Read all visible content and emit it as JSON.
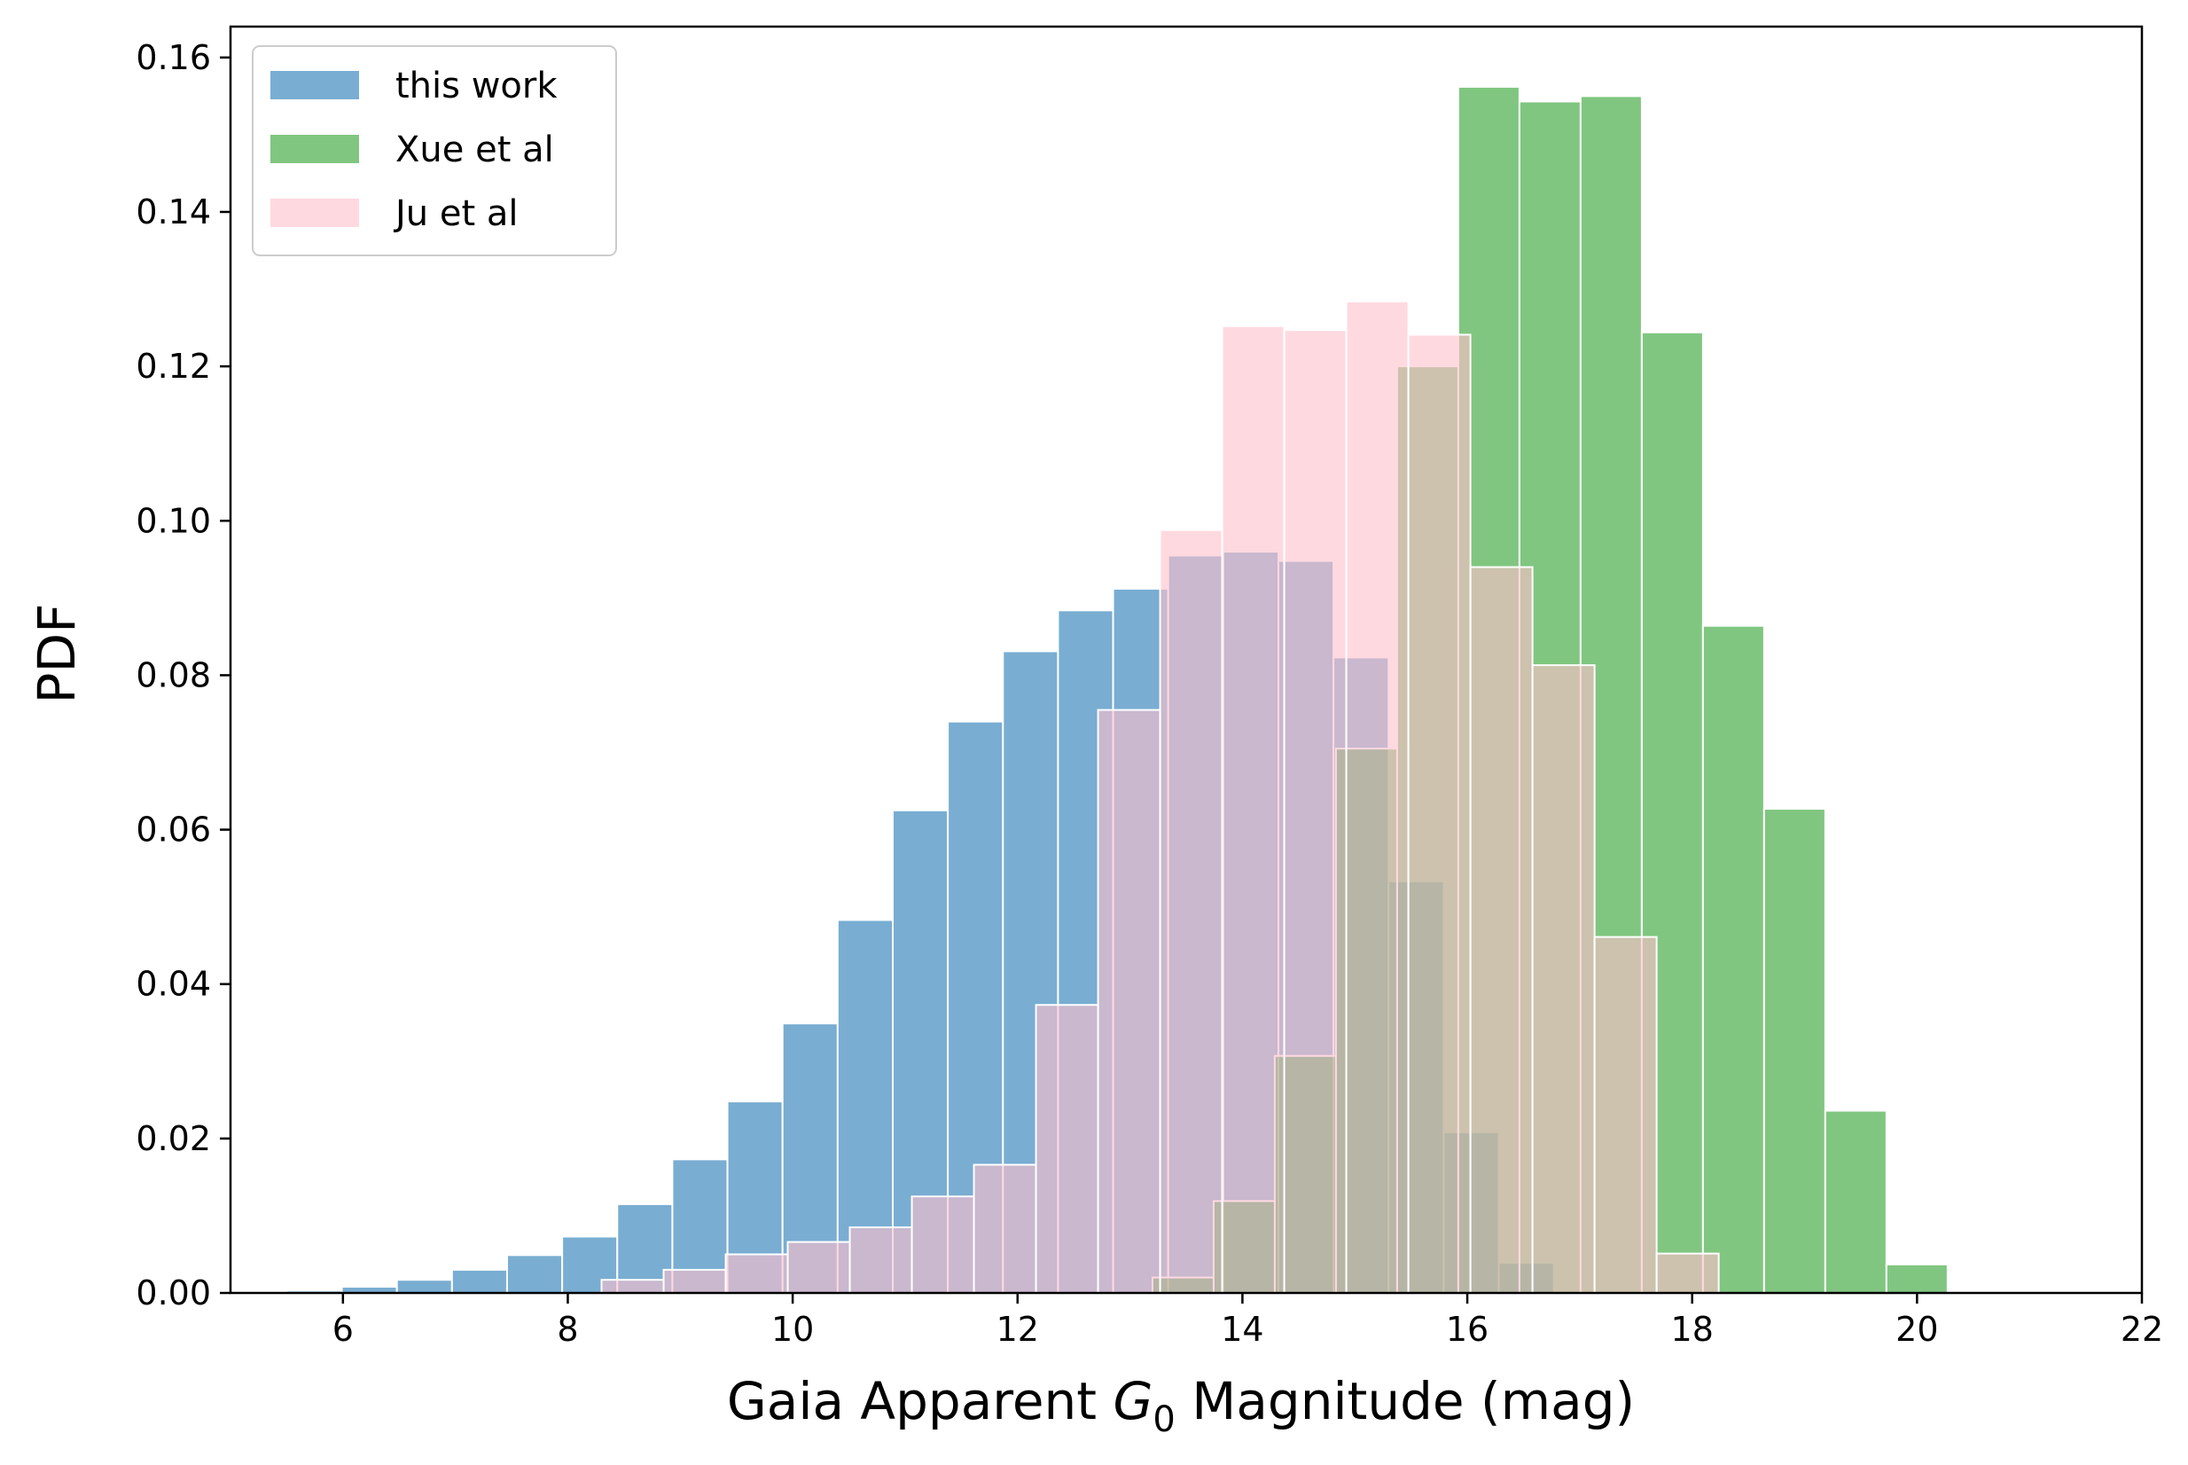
{
  "chart_data": {
    "type": "histogram",
    "xlabel": "Gaia Apparent G0 Magnitude (mag)",
    "xlabel_parts": {
      "prefix": "Gaia Apparent ",
      "var": "G",
      "sub": "0",
      "suffix": " Magnitude (mag)"
    },
    "ylabel": "PDF",
    "xlim": [
      5,
      22
    ],
    "ylim": [
      0,
      0.164
    ],
    "xticks": [
      6,
      8,
      10,
      12,
      14,
      16,
      18,
      20,
      22
    ],
    "xtick_labels": [
      "6",
      "8",
      "10",
      "12",
      "14",
      "16",
      "18",
      "20",
      "22"
    ],
    "yticks": [
      0,
      0.02,
      0.04,
      0.06,
      0.08,
      0.1,
      0.12,
      0.14,
      0.16
    ],
    "ytick_labels": [
      "0.00",
      "0.02",
      "0.04",
      "0.06",
      "0.08",
      "0.10",
      "0.12",
      "0.14",
      "0.16"
    ],
    "grid": false,
    "legend_position": "top-left",
    "series": [
      {
        "name": "this work",
        "color": "#1f77b4",
        "opacity": 0.6,
        "bin_edges": [
          5.5,
          5.99,
          6.48,
          6.97,
          7.46,
          7.95,
          8.44,
          8.93,
          9.42,
          9.91,
          10.4,
          10.89,
          11.38,
          11.87,
          12.36,
          12.85,
          13.34,
          13.83,
          14.32,
          14.81,
          15.3,
          15.79,
          16.28,
          16.77
        ],
        "values": [
          0.0003,
          0.0008,
          0.0017,
          0.003,
          0.0049,
          0.0073,
          0.0115,
          0.0173,
          0.0248,
          0.0349,
          0.0483,
          0.0625,
          0.074,
          0.0831,
          0.0884,
          0.0912,
          0.0955,
          0.096,
          0.0948,
          0.0823,
          0.0533,
          0.0208,
          0.0039
        ]
      },
      {
        "name": "Xue et al",
        "color": "#2ca02c",
        "opacity": 0.6,
        "bin_edges": [
          13.2,
          13.744,
          14.288,
          14.832,
          15.376,
          15.92,
          16.464,
          17.008,
          17.552,
          18.096,
          18.64,
          19.184,
          19.728,
          20.272
        ],
        "values": [
          0.002,
          0.0119,
          0.0307,
          0.0705,
          0.12,
          0.1562,
          0.1543,
          0.155,
          0.1244,
          0.0864,
          0.0627,
          0.0236,
          0.0037
        ]
      },
      {
        "name": "Ju et al",
        "color": "#ffc0cb",
        "opacity": 0.6,
        "bin_edges": [
          8.3,
          8.852,
          9.404,
          9.956,
          10.508,
          11.06,
          11.612,
          12.164,
          12.716,
          13.268,
          13.82,
          14.372,
          14.924,
          15.476,
          16.028,
          16.58,
          17.132,
          17.684,
          18.236
        ],
        "values": [
          0.0017,
          0.003,
          0.005,
          0.0066,
          0.0085,
          0.0125,
          0.0166,
          0.0373,
          0.0755,
          0.0988,
          0.1252,
          0.1247,
          0.1284,
          0.1241,
          0.094,
          0.0813,
          0.0461,
          0.0051
        ]
      }
    ]
  }
}
